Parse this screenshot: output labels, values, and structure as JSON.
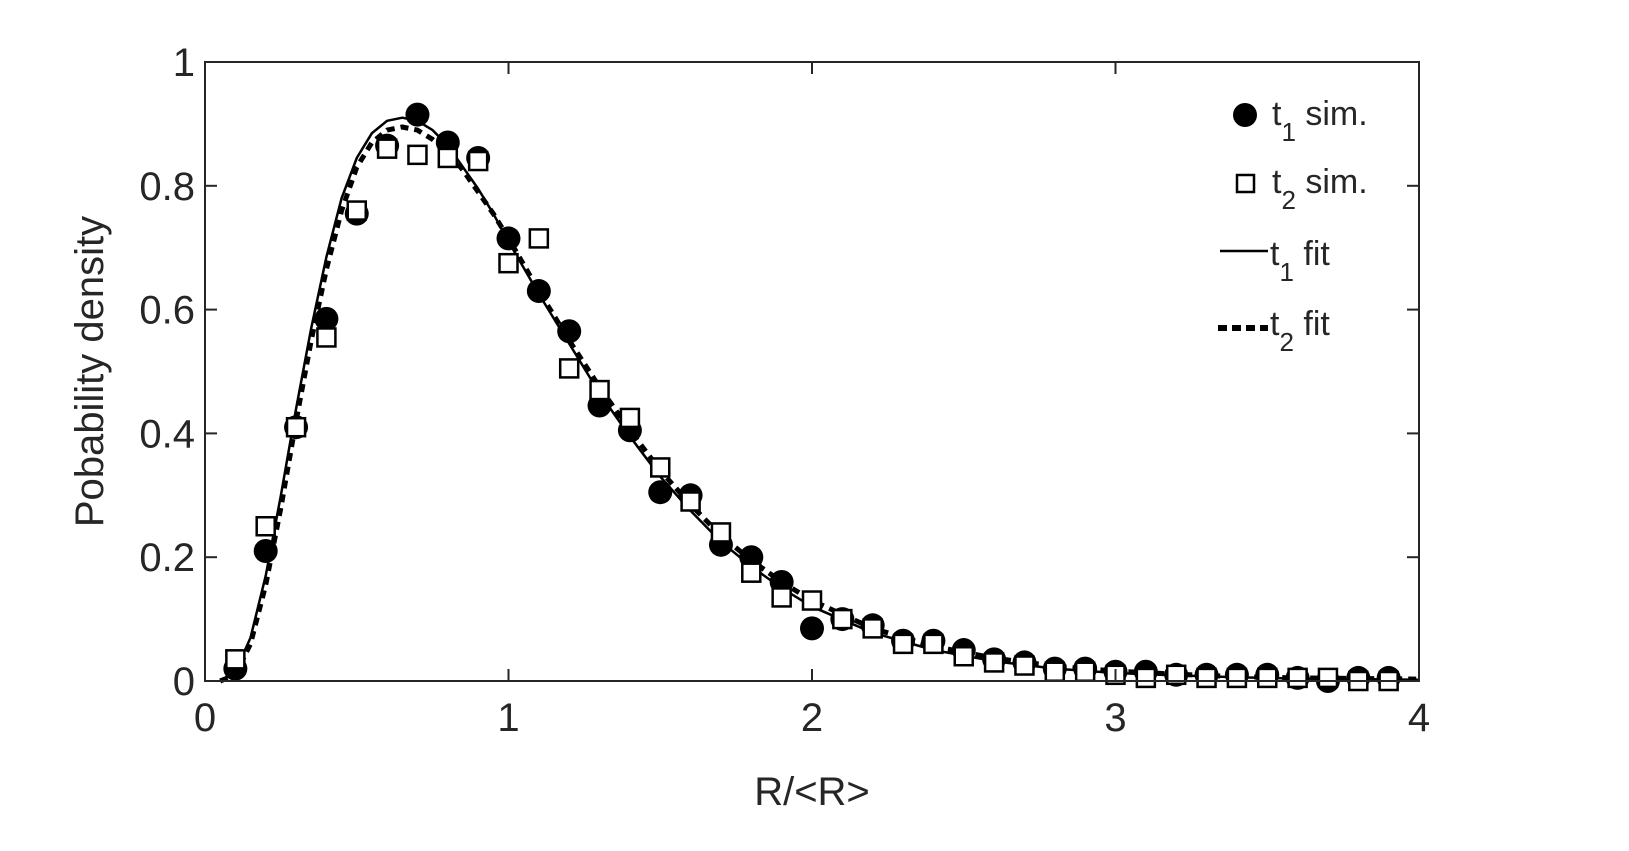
{
  "chart_data": {
    "type": "scatter",
    "xlabel": "R/<R>",
    "ylabel": "Pobability density",
    "xlim": [
      0,
      4
    ],
    "ylim": [
      0,
      1
    ],
    "xticks": [
      0,
      1,
      2,
      3,
      4
    ],
    "yticks": [
      0,
      0.2,
      0.4,
      0.6,
      0.8,
      1
    ],
    "ytick_labels": [
      "0",
      "0.2",
      "0.4",
      "0.6",
      "0.8",
      "1"
    ],
    "grid": false,
    "box": true,
    "legend_position": "top-right",
    "series": [
      {
        "name": "t1 sim.",
        "legend": {
          "pre": "t",
          "sub": "1",
          "post": " sim."
        },
        "kind": "scatter",
        "marker": "filled-circle",
        "color": "#000000",
        "x": [
          0.1,
          0.2,
          0.3,
          0.4,
          0.5,
          0.6,
          0.7,
          0.8,
          0.9,
          1.0,
          1.1,
          1.2,
          1.3,
          1.4,
          1.5,
          1.6,
          1.7,
          1.8,
          1.9,
          2.0,
          2.1,
          2.2,
          2.3,
          2.4,
          2.5,
          2.6,
          2.7,
          2.8,
          2.9,
          3.0,
          3.1,
          3.2,
          3.3,
          3.4,
          3.5,
          3.6,
          3.7,
          3.8,
          3.9
        ],
        "y": [
          0.02,
          0.21,
          0.41,
          0.585,
          0.755,
          0.865,
          0.915,
          0.87,
          0.845,
          0.715,
          0.63,
          0.565,
          0.445,
          0.405,
          0.305,
          0.3,
          0.22,
          0.2,
          0.16,
          0.085,
          0.1,
          0.09,
          0.065,
          0.065,
          0.05,
          0.035,
          0.03,
          0.02,
          0.02,
          0.015,
          0.015,
          0.01,
          0.01,
          0.01,
          0.01,
          0.005,
          0.0,
          0.005,
          0.005
        ]
      },
      {
        "name": "t2 sim.",
        "legend": {
          "pre": "t",
          "sub": "2",
          "post": " sim."
        },
        "kind": "scatter",
        "marker": "open-square",
        "color": "#000000",
        "x": [
          0.1,
          0.2,
          0.3,
          0.4,
          0.5,
          0.6,
          0.7,
          0.8,
          0.9,
          1.0,
          1.1,
          1.2,
          1.3,
          1.4,
          1.5,
          1.6,
          1.7,
          1.8,
          1.9,
          2.0,
          2.1,
          2.2,
          2.3,
          2.4,
          2.5,
          2.6,
          2.7,
          2.8,
          2.9,
          3.0,
          3.1,
          3.2,
          3.3,
          3.4,
          3.5,
          3.6,
          3.7,
          3.8,
          3.9
        ],
        "y": [
          0.035,
          0.25,
          0.41,
          0.555,
          0.76,
          0.86,
          0.85,
          0.845,
          0.84,
          0.675,
          0.715,
          0.505,
          0.47,
          0.425,
          0.345,
          0.29,
          0.24,
          0.175,
          0.135,
          0.13,
          0.1,
          0.085,
          0.06,
          0.06,
          0.04,
          0.03,
          0.025,
          0.015,
          0.015,
          0.01,
          0.005,
          0.01,
          0.005,
          0.005,
          0.005,
          0.005,
          0.005,
          0.0,
          0.0
        ]
      },
      {
        "name": "t1 fit",
        "legend": {
          "pre": "t",
          "sub": "1",
          "post": " fit"
        },
        "kind": "line",
        "style": "solid",
        "color": "#000000",
        "x": [
          0.05,
          0.1,
          0.15,
          0.2,
          0.25,
          0.3,
          0.35,
          0.4,
          0.45,
          0.5,
          0.55,
          0.6,
          0.65,
          0.7,
          0.75,
          0.8,
          0.85,
          0.9,
          0.95,
          1.0,
          1.1,
          1.2,
          1.3,
          1.4,
          1.5,
          1.6,
          1.7,
          1.8,
          1.9,
          2.0,
          2.2,
          2.4,
          2.6,
          2.8,
          3.0,
          3.2,
          3.4,
          3.6,
          3.8,
          4.0
        ],
        "y": [
          0.0,
          0.015,
          0.07,
          0.17,
          0.3,
          0.44,
          0.57,
          0.685,
          0.78,
          0.845,
          0.885,
          0.905,
          0.91,
          0.905,
          0.89,
          0.865,
          0.83,
          0.795,
          0.755,
          0.71,
          0.625,
          0.545,
          0.465,
          0.395,
          0.33,
          0.275,
          0.225,
          0.185,
          0.15,
          0.12,
          0.078,
          0.05,
          0.032,
          0.02,
          0.013,
          0.009,
          0.006,
          0.004,
          0.003,
          0.002
        ]
      },
      {
        "name": "t2 fit",
        "legend": {
          "pre": "t",
          "sub": "2",
          "post": " fit"
        },
        "kind": "line",
        "style": "dotted-thick",
        "color": "#000000",
        "x": [
          0.05,
          0.1,
          0.15,
          0.2,
          0.25,
          0.3,
          0.35,
          0.4,
          0.45,
          0.5,
          0.55,
          0.6,
          0.65,
          0.7,
          0.75,
          0.8,
          0.85,
          0.9,
          0.95,
          1.0,
          1.1,
          1.2,
          1.3,
          1.4,
          1.5,
          1.6,
          1.7,
          1.8,
          1.9,
          2.0,
          2.2,
          2.4,
          2.6,
          2.8,
          3.0,
          3.2,
          3.4,
          3.6,
          3.8,
          4.0
        ],
        "y": [
          0.0,
          0.01,
          0.06,
          0.155,
          0.28,
          0.42,
          0.55,
          0.665,
          0.76,
          0.83,
          0.87,
          0.89,
          0.895,
          0.89,
          0.875,
          0.855,
          0.825,
          0.79,
          0.755,
          0.715,
          0.63,
          0.55,
          0.475,
          0.405,
          0.34,
          0.285,
          0.235,
          0.195,
          0.16,
          0.13,
          0.085,
          0.056,
          0.037,
          0.024,
          0.016,
          0.011,
          0.007,
          0.005,
          0.004,
          0.003
        ]
      }
    ]
  }
}
